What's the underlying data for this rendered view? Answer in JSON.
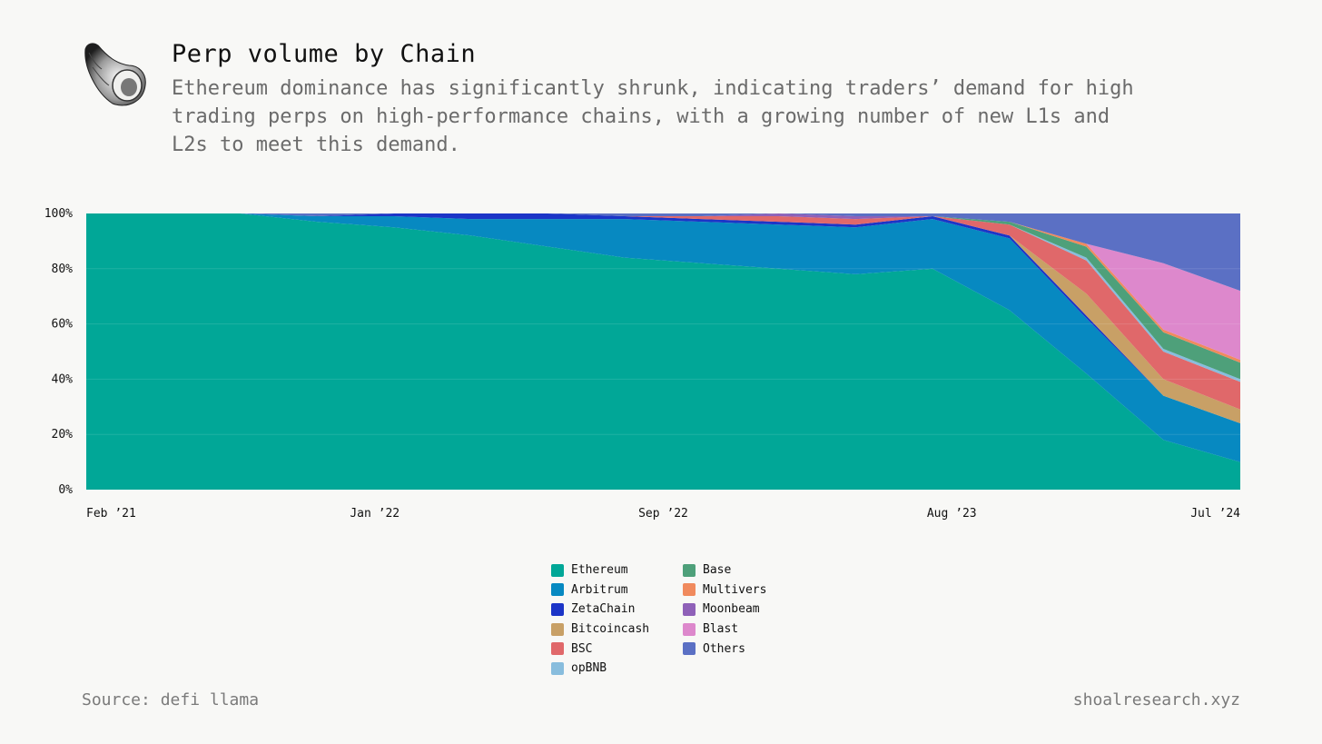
{
  "header": {
    "title": "Perp volume by Chain",
    "subtitle": "Ethereum dominance has significantly shrunk, indicating traders’ demand for high trading perps on high-performance chains, with a growing number of new L1s and L2s to meet this demand."
  },
  "footer": {
    "source": "Source: defi llama",
    "brand": "shoalresearch.xyz"
  },
  "logo": {
    "icon": "seashell-icon"
  },
  "chart_data": {
    "type": "area",
    "stacked": true,
    "normalized": true,
    "y_ticks": [
      "0%",
      "20%",
      "40%",
      "60%",
      "80%",
      "100%"
    ],
    "ylim": [
      0,
      100
    ],
    "x_ticks": [
      "Feb ’21",
      "Jan ’22",
      "Sep ’22",
      "Aug ’23",
      "Jul ’24"
    ],
    "x": [
      "2021-02",
      "2021-05",
      "2021-08",
      "2021-11",
      "2022-01",
      "2022-04",
      "2022-07",
      "2022-09",
      "2022-12",
      "2023-03",
      "2023-06",
      "2023-08",
      "2023-11",
      "2024-02",
      "2024-05",
      "2024-07"
    ],
    "grid": true,
    "legend_position": "bottom",
    "series": [
      {
        "name": "Ethereum",
        "color": "#01a797",
        "values": [
          100,
          100,
          100,
          97,
          95,
          92,
          88,
          84,
          82,
          80,
          78,
          80,
          65,
          42,
          18,
          10
        ]
      },
      {
        "name": "Arbitrum",
        "color": "#0789c1",
        "values": [
          0,
          0,
          0,
          2,
          4,
          6,
          10,
          14,
          15,
          16,
          17,
          18,
          26,
          20,
          16,
          14
        ]
      },
      {
        "name": "ZetaChain",
        "color": "#1c35c7",
        "values": [
          0,
          0,
          0,
          0,
          1,
          2,
          2,
          1,
          1,
          1,
          1,
          1,
          1,
          1,
          0,
          0
        ]
      },
      {
        "name": "Bitcoincash",
        "color": "#c8a066",
        "values": [
          0,
          0,
          0,
          0,
          0,
          0,
          0,
          0,
          0,
          0,
          0,
          0,
          0,
          8,
          6,
          5
        ]
      },
      {
        "name": "BSC",
        "color": "#e0686a",
        "values": [
          0,
          0,
          0,
          0,
          0,
          0,
          0,
          0,
          1,
          2,
          2,
          0,
          4,
          12,
          10,
          10
        ]
      },
      {
        "name": "opBNB",
        "color": "#88bddd",
        "values": [
          0,
          0,
          0,
          0,
          0,
          0,
          0,
          0,
          0,
          0,
          0,
          0,
          0,
          1,
          1,
          1
        ]
      },
      {
        "name": "Base",
        "color": "#4ea07a",
        "values": [
          0,
          0,
          0,
          0,
          0,
          0,
          0,
          0,
          0,
          0,
          0,
          0,
          1,
          4,
          6,
          6
        ]
      },
      {
        "name": "Multivers",
        "color": "#f08a5d",
        "values": [
          0,
          0,
          0,
          0,
          0,
          0,
          0,
          0,
          0,
          0,
          0,
          0,
          0,
          1,
          1,
          1
        ]
      },
      {
        "name": "Moonbeam",
        "color": "#8f61b8",
        "values": [
          0,
          0,
          0,
          0,
          0,
          0,
          0,
          0,
          0,
          1,
          1,
          0,
          0,
          0,
          0,
          0
        ]
      },
      {
        "name": "Blast",
        "color": "#dd88cc",
        "values": [
          0,
          0,
          0,
          0,
          0,
          0,
          0,
          0,
          0,
          0,
          0,
          0,
          0,
          0,
          24,
          25
        ]
      },
      {
        "name": "Others",
        "color": "#5b70c4",
        "values": [
          0,
          0,
          0,
          1,
          0,
          0,
          0,
          1,
          1,
          0,
          1,
          1,
          3,
          11,
          18,
          28
        ]
      }
    ]
  }
}
